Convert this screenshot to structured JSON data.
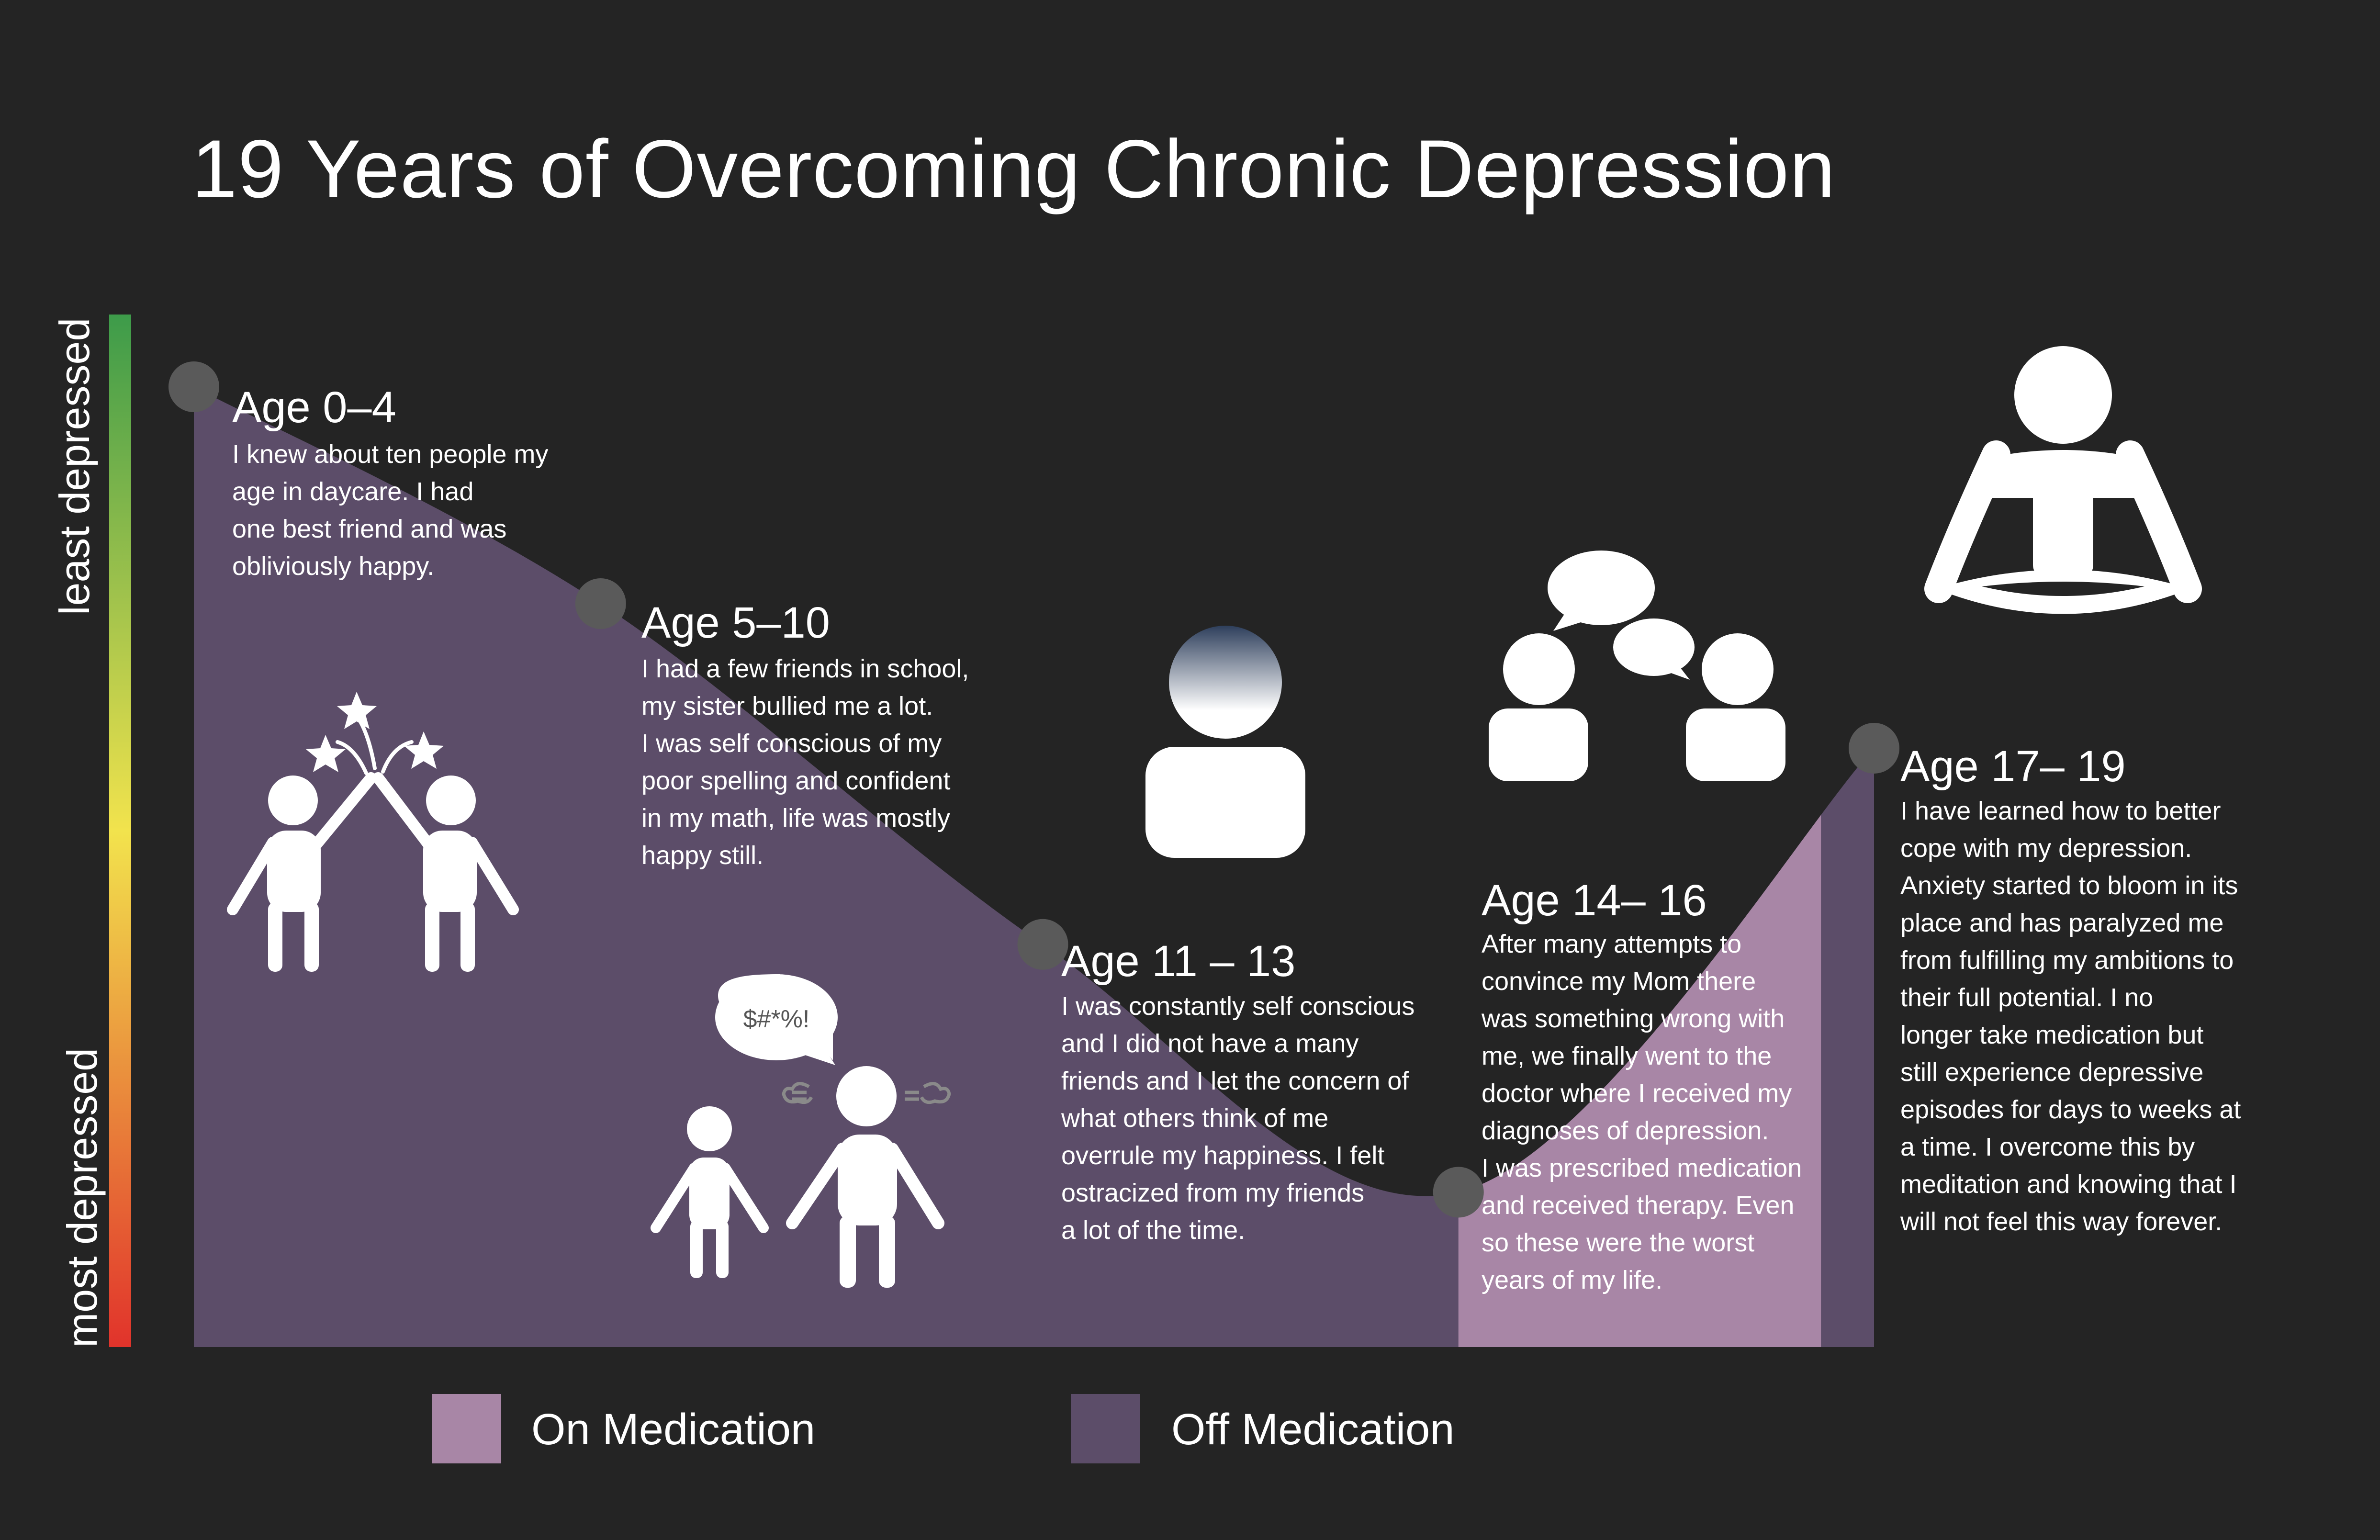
{
  "chart_data": {
    "type": "area",
    "title": "19 Years of Overcoming Chronic Depression",
    "ylabel_top": "least depressed",
    "ylabel_bottom": "most depressed",
    "x_range": [
      0,
      19
    ],
    "y_range": [
      0,
      100
    ],
    "y_meaning": "higher = less depressed",
    "points": [
      {
        "x": 0,
        "y": 93
      },
      {
        "x": 4.6,
        "y": 72
      },
      {
        "x": 9.6,
        "y": 39
      },
      {
        "x": 14.3,
        "y": 15
      },
      {
        "x": 19,
        "y": 58
      }
    ],
    "medication_periods": [
      {
        "start": 14.3,
        "end": 18.4,
        "status": "On Medication"
      }
    ],
    "colors": {
      "on_medication": "#a886a6",
      "off_medication": "#5c4d69",
      "point": "#5a5a5a",
      "background": "#242424",
      "scale_top": "#3d9b4a",
      "scale_mid": "#f2e34d",
      "scale_bottom": "#e1332b"
    },
    "legend": [
      {
        "label": "On Medication",
        "color": "#a886a6"
      },
      {
        "label": "Off Medication",
        "color": "#5c4d69"
      }
    ],
    "stages": [
      {
        "title": "Age 0–4",
        "text": "I knew about ten people my\nage in daycare. I had\none best friend and was\nobliviously happy.",
        "icon": "two-kids-icon"
      },
      {
        "title": "Age 5–10",
        "text": "I had a few friends in school,\nmy sister bullied me a lot.\nI was self conscious of my\npoor spelling and confident\nin my math, life was mostly\nhappy still.",
        "icon": "high-five-icon"
      },
      {
        "title": "Age 11 – 13",
        "text": "I was constantly self conscious\nand I did not have a many\nfriends and I let the concern of\nwhat others think of me\noverrule my happiness. I felt\nostracized from my friends\na lot of the time.",
        "icon": "fading-person-icon"
      },
      {
        "title": "Age 14– 16",
        "text": "After many attempts to\nconvince my Mom there\nwas something wrong with\nme, we finally went to the\ndoctor where I received my\ndiagnoses of depression.\nI was prescribed medication\nand received therapy. Even\nso these were the worst\nyears of my life.",
        "icon": "therapy-conversation-icon"
      },
      {
        "title": "Age 17– 19",
        "text": "I have learned how to better\ncope with my depression.\nAnxiety started to bloom in its\nplace and has paralyzed me\nfrom fulfilling my ambitions to\ntheir full  potential. I no\nlonger take medication but\nstill experience depressive\nepisodes for days to weeks at\na time. I overcome this by\nmeditation and knowing that I\nwill not feel this way forever.",
        "icon": "meditating-person-icon"
      }
    ],
    "speech_bubble_text": "$#*%!"
  }
}
